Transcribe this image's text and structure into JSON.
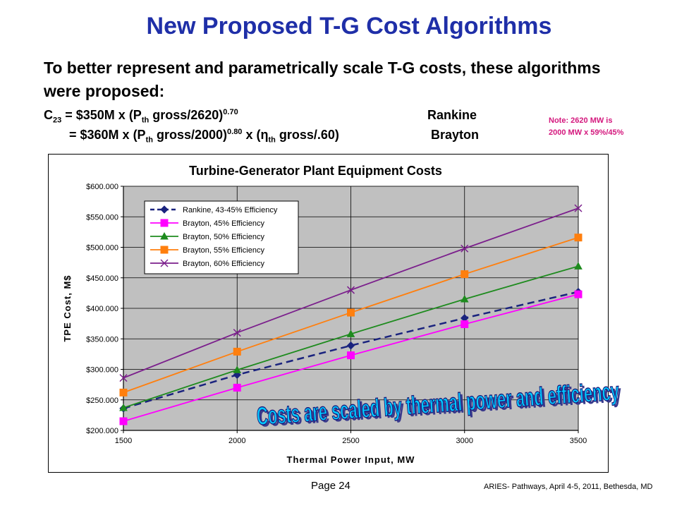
{
  "slide": {
    "title": "New Proposed T-G Cost Algorithms",
    "intro": "To better represent and parametrically scale T-G costs, these algorithms were proposed:",
    "formula1": {
      "prefix": "C",
      "prefix_sub": "23",
      "eq": " =  $350M x (P",
      "p_sub": "th",
      "mid": " gross/2620)",
      "exp": "0.70",
      "cycle": "Rankine"
    },
    "formula2": {
      "eq": "=  $360M x (P",
      "p_sub": "th",
      "mid": " gross/2000)",
      "exp": "0.80",
      "tail1": " x (η",
      "eta_sub": "th",
      "tail2": " gross/.60)",
      "cycle": "Brayton"
    },
    "note_line1": "Note:  2620  MW is",
    "note_line2": "2000 MW x 59%/45%",
    "overlay_text": "Costs are scaled by thermal power and efficiency",
    "page_number": "Page 24",
    "footer": "ARIES- Pathways, April 4-5, 2011, Bethesda, MD"
  },
  "chart_data": {
    "type": "line",
    "title": "Turbine-Generator Plant Equipment Costs",
    "xlabel": "Thermal Power Input, MW",
    "ylabel": "TPE Cost, M$",
    "x": [
      1500,
      2000,
      2500,
      3000,
      3500
    ],
    "xlim": [
      1500,
      3500
    ],
    "ylim": [
      200,
      600
    ],
    "x_ticks": [
      "1500",
      "2000",
      "2500",
      "3000",
      "3500"
    ],
    "y_ticks": [
      "$200.000",
      "$250.000",
      "$300.000",
      "$350.000",
      "$400.000",
      "$450.000",
      "$500.000",
      "$550.000",
      "$600.000"
    ],
    "y_tick_values": [
      200,
      250,
      300,
      350,
      400,
      450,
      500,
      550,
      600
    ],
    "grid": true,
    "legend_position": "top-left",
    "plot_background": "#c0c0c0",
    "series": [
      {
        "name": "Rankine, 43-45% Efficiency",
        "values": [
          236,
          291,
          339,
          384,
          427
        ],
        "color": "#1a237e",
        "dash": true,
        "marker": "diamond"
      },
      {
        "name": "Brayton, 45% Efficiency",
        "values": [
          215,
          270,
          323,
          374,
          423
        ],
        "color": "#ff00ff",
        "dash": false,
        "marker": "square"
      },
      {
        "name": "Brayton, 50% Efficiency",
        "values": [
          237,
          299,
          358,
          415,
          469
        ],
        "color": "#1e8b1e",
        "dash": false,
        "marker": "triangle"
      },
      {
        "name": "Brayton, 55% Efficiency",
        "values": [
          262,
          329,
          393,
          456,
          516
        ],
        "color": "#ff7f0e",
        "dash": false,
        "marker": "square"
      },
      {
        "name": "Brayton, 60% Efficiency",
        "values": [
          286,
          360,
          430,
          498,
          564
        ],
        "color": "#7b1f8c",
        "dash": false,
        "marker": "cross"
      }
    ]
  }
}
